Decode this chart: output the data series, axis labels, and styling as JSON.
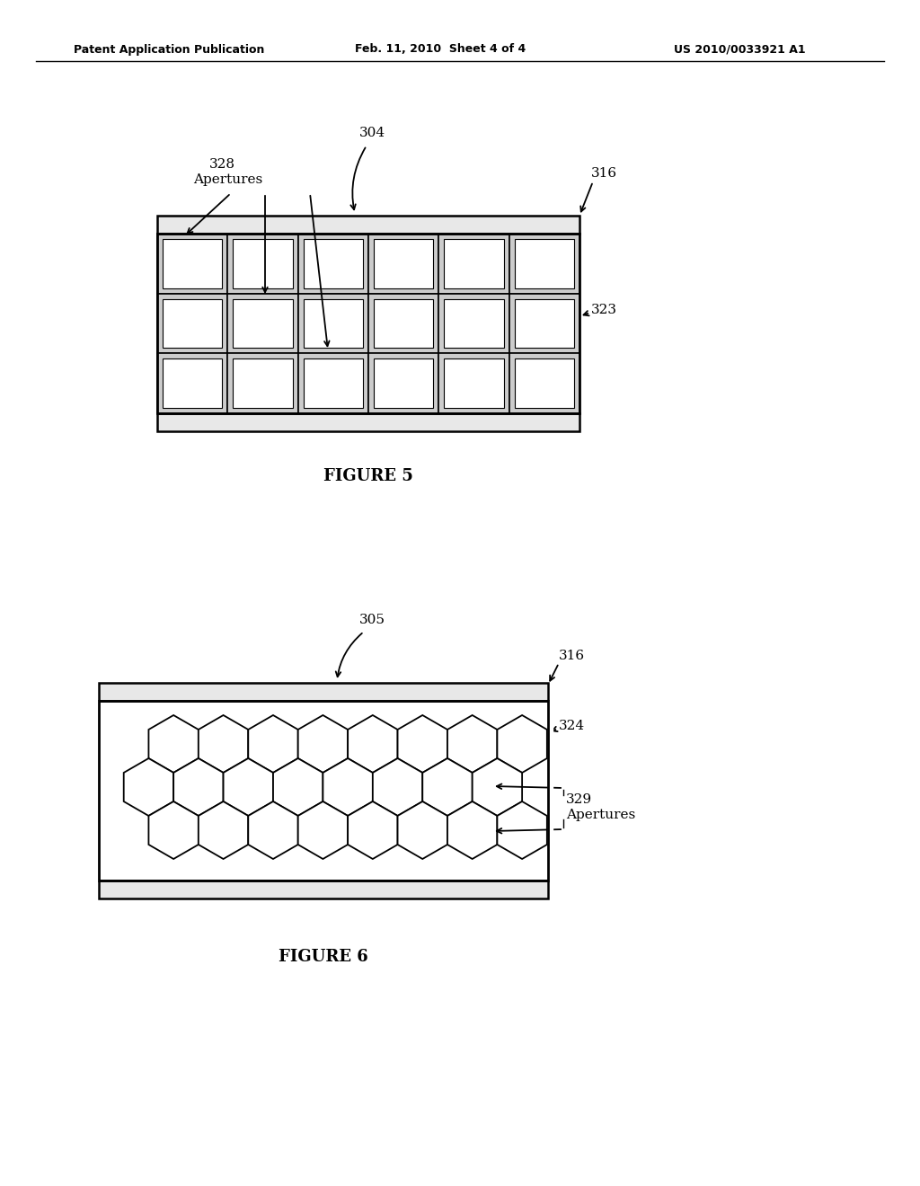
{
  "bg_color": "#ffffff",
  "text_color": "#000000",
  "line_color": "#000000",
  "header_left": "Patent Application Publication",
  "header_mid": "Feb. 11, 2010  Sheet 4 of 4",
  "header_right": "US 2010/0033921 A1",
  "fig5_label": "FIGURE 5",
  "fig6_label": "FIGURE 6",
  "fig5_ref304": "304",
  "fig5_ref316": "316",
  "fig5_ref323": "323",
  "fig5_ref328": "328",
  "fig5_ref328b": "Apertures",
  "fig6_ref305": "305",
  "fig6_ref316": "316",
  "fig6_ref324": "324",
  "fig6_ref329": "329",
  "fig6_ref329b": "Apertures",
  "fig5_ncols": 6,
  "fig5_nrows": 3,
  "plate_color": "#e8e8e8",
  "hex_r": 32
}
